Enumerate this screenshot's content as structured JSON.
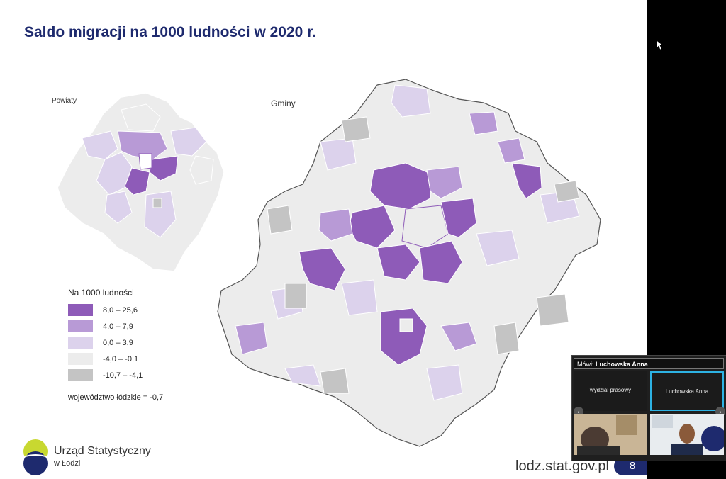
{
  "slide": {
    "title": "Saldo migracji na 1000 ludności w 2020 r.",
    "label_powiaty": "Powiaty",
    "label_gminy": "Gminy",
    "legend": {
      "title": "Na 1000 ludności",
      "items": [
        {
          "label": "8,0 – 25,6",
          "color": "#8e5bb8"
        },
        {
          "label": "4,0 –   7,9",
          "color": "#b89ad6"
        },
        {
          "label": "0,0 –   3,9",
          "color": "#dcd2ec"
        },
        {
          "label": "-4,0 – -0,1",
          "color": "#ececec"
        },
        {
          "label": "-10,7 – -4,1",
          "color": "#c4c4c4"
        }
      ]
    },
    "region_average": "województwo łódzkie = -0,7",
    "logo_line1": "Urząd Statystyczny",
    "logo_line2": "w Łodzi",
    "footer_url": "lodz.stat.gov.pl",
    "page_number": "8"
  },
  "meeting": {
    "speaker_prefix": "Mówi:",
    "speaker_name": "Luchowska Anna",
    "tile1_label": "wydział prasowy",
    "tile1_sub": "",
    "tile2_label": "Luchowska Anna",
    "nav_left": "‹",
    "nav_right": "›"
  },
  "colors": {
    "title": "#1e2a6e",
    "accent_purple_dark": "#8e5bb8",
    "accent_purple_mid": "#b89ad6",
    "accent_purple_light": "#dcd2ec",
    "neutral_light": "#ececec",
    "neutral_grey": "#c4c4c4",
    "active_tile_border": "#2db2e3"
  }
}
